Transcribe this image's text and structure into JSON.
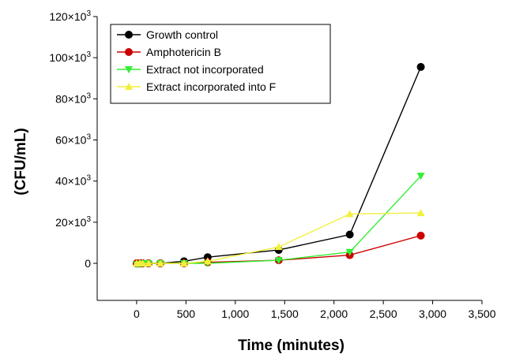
{
  "chart_data": {
    "type": "line",
    "title": "",
    "xlabel": "Time (minutes)",
    "ylabel": "(CFU/mL)",
    "xlim": [
      -400,
      3500
    ],
    "ylim": [
      -18000,
      120000
    ],
    "x_ticks": [
      0,
      500,
      1000,
      1500,
      2000,
      2500,
      3000,
      3500
    ],
    "x_tick_labels": [
      "0",
      "500",
      "1,000",
      "1,500",
      "2,000",
      "2,500",
      "3,000",
      "3,500"
    ],
    "y_ticks": [
      0,
      20000,
      40000,
      60000,
      80000,
      100000,
      120000
    ],
    "y_tick_labels": [
      {
        "base": "0",
        "exp": ""
      },
      {
        "base": "20×10",
        "exp": "3"
      },
      {
        "base": "40×10",
        "exp": "3"
      },
      {
        "base": "60×10",
        "exp": "3"
      },
      {
        "base": "80×10",
        "exp": "3"
      },
      {
        "base": "100×10",
        "exp": "3"
      },
      {
        "base": "120×10",
        "exp": "3"
      }
    ],
    "grid": false,
    "legend_position": "top-left",
    "series": [
      {
        "name": "Growth control",
        "color": "#000000",
        "marker": "circle",
        "x": [
          0,
          30,
          60,
          120,
          240,
          480,
          720,
          1440,
          2160,
          2880
        ],
        "y": [
          0,
          0,
          0,
          0,
          0,
          1000,
          3000,
          6500,
          14000,
          95500
        ]
      },
      {
        "name": "Amphotericin B",
        "color": "#cc0000",
        "marker": "circle",
        "x": [
          0,
          30,
          60,
          120,
          240,
          480,
          720,
          1440,
          2160,
          2880
        ],
        "y": [
          0,
          0,
          0,
          0,
          0,
          0,
          500,
          1500,
          4000,
          13500
        ]
      },
      {
        "name": "Extract not incorporated",
        "color": "#33ee33",
        "marker": "triangle-down",
        "x": [
          0,
          30,
          60,
          120,
          240,
          480,
          720,
          1440,
          2160,
          2880
        ],
        "y": [
          -500,
          -500,
          0,
          0,
          0,
          0,
          0,
          1500,
          5500,
          42500
        ]
      },
      {
        "name": "Extract incorporated into F",
        "color": "#f0f03c",
        "marker": "triangle-up",
        "x": [
          0,
          30,
          60,
          120,
          240,
          480,
          720,
          1440,
          2160,
          2880
        ],
        "y": [
          0,
          0,
          0,
          0,
          0,
          0,
          1000,
          8000,
          24000,
          24500
        ]
      }
    ]
  }
}
